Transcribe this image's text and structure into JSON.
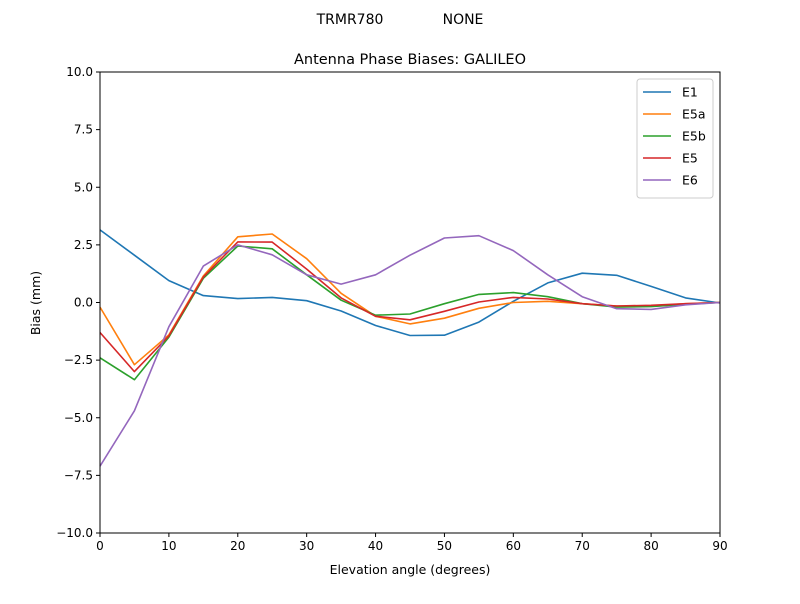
{
  "suptitle_left": "TRMR780",
  "suptitle_right": "NONE",
  "chart_data": {
    "type": "line",
    "title": "Antenna Phase Biases: GALILEO",
    "xlabel": "Elevation angle (degrees)",
    "ylabel": "Bias (mm)",
    "xlim": [
      0,
      90
    ],
    "ylim": [
      -10,
      10
    ],
    "xticks": [
      0,
      10,
      20,
      30,
      40,
      50,
      60,
      70,
      80,
      90
    ],
    "xtick_labels": [
      "0",
      "10",
      "20",
      "30",
      "40",
      "50",
      "60",
      "70",
      "80",
      "90"
    ],
    "yticks": [
      -10,
      -7.5,
      -5,
      -2.5,
      0,
      2.5,
      5,
      7.5,
      10
    ],
    "ytick_labels": [
      "−10.0",
      "−7.5",
      "−5.0",
      "−2.5",
      "0.0",
      "2.5",
      "5.0",
      "7.5",
      "10.0"
    ],
    "grid": false,
    "legend_position": "top-right",
    "x": [
      0,
      5,
      10,
      15,
      20,
      25,
      30,
      35,
      40,
      45,
      50,
      55,
      60,
      65,
      70,
      75,
      80,
      85,
      90
    ],
    "series": [
      {
        "name": "E1",
        "color": "#1f77b4",
        "values": [
          3.15,
          2.05,
          0.95,
          0.3,
          0.17,
          0.22,
          0.08,
          -0.37,
          -1.0,
          -1.43,
          -1.42,
          -0.85,
          0.05,
          0.85,
          1.27,
          1.18,
          0.7,
          0.2,
          -0.02
        ]
      },
      {
        "name": "E5a",
        "color": "#ff7f0e",
        "values": [
          -0.2,
          -2.7,
          -1.4,
          1.15,
          2.85,
          2.97,
          1.9,
          0.4,
          -0.6,
          -0.93,
          -0.68,
          -0.25,
          0.0,
          0.05,
          -0.05,
          -0.15,
          -0.15,
          -0.05,
          0.0
        ]
      },
      {
        "name": "E5b",
        "color": "#2ca02c",
        "values": [
          -2.4,
          -3.35,
          -1.5,
          1.05,
          2.45,
          2.33,
          1.2,
          0.1,
          -0.55,
          -0.5,
          -0.05,
          0.35,
          0.43,
          0.25,
          -0.05,
          -0.2,
          -0.18,
          -0.08,
          0.0
        ]
      },
      {
        "name": "E5",
        "color": "#d62728",
        "values": [
          -1.3,
          -3.0,
          -1.45,
          1.1,
          2.63,
          2.62,
          1.45,
          0.2,
          -0.6,
          -0.75,
          -0.38,
          0.02,
          0.22,
          0.15,
          -0.05,
          -0.15,
          -0.12,
          -0.05,
          0.0
        ]
      },
      {
        "name": "E6",
        "color": "#9467bd",
        "values": [
          -7.1,
          -4.7,
          -1.05,
          1.58,
          2.5,
          2.07,
          1.2,
          0.8,
          1.2,
          2.05,
          2.8,
          2.9,
          2.25,
          1.2,
          0.25,
          -0.27,
          -0.3,
          -0.1,
          0.0
        ]
      }
    ]
  }
}
